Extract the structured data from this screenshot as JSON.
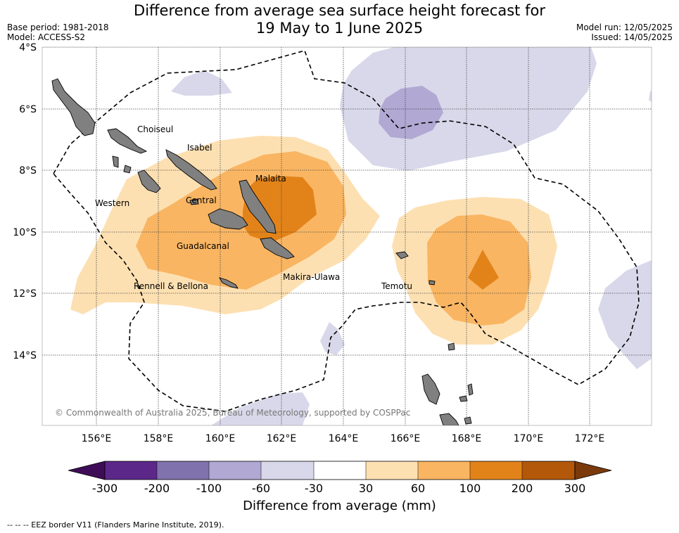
{
  "header": {
    "title_line1": "Difference from average sea surface height forecast for",
    "title_line2": "19 May to 1 June 2025",
    "base_period": "Base period: 1981-2018",
    "model": "Model: ACCESS-S2",
    "model_run": "Model run: 12/05/2025",
    "issued": "Issued: 14/05/2025"
  },
  "map": {
    "lat_labels": [
      "4°S",
      "6°S",
      "8°S",
      "10°S",
      "12°S",
      "14°S"
    ],
    "lon_labels": [
      "156°E",
      "158°E",
      "160°E",
      "162°E",
      "164°E",
      "166°E",
      "168°E",
      "170°E",
      "172°E"
    ],
    "places": [
      "Choiseul",
      "Isabel",
      "Malaita",
      "Western",
      "Central",
      "Guadalcanal",
      "Makira-Ulawa",
      "Rennell & Bellona",
      "Temotu"
    ],
    "copyright": "© Commonwealth of Australia 2025, Bureau of Meteorology, supported by COSPPac",
    "land_color": "#808080",
    "eez_style": "dashed black"
  },
  "colorbar": {
    "title": "Difference from average (mm)",
    "ticks": [
      "-300",
      "-200",
      "-100",
      "-60",
      "-30",
      "30",
      "60",
      "100",
      "200",
      "300"
    ],
    "colors": [
      "#3f0d58",
      "#5b2889",
      "#7f72ad",
      "#b1a8d3",
      "#d8d8ea",
      "#ffffff",
      "#fde0b2",
      "#f9b562",
      "#e2831a",
      "#b35809",
      "#7a3a0c"
    ]
  },
  "footnote": "--  --  -- EEZ border V11 (Flanders Marine Institute, 2019)."
}
